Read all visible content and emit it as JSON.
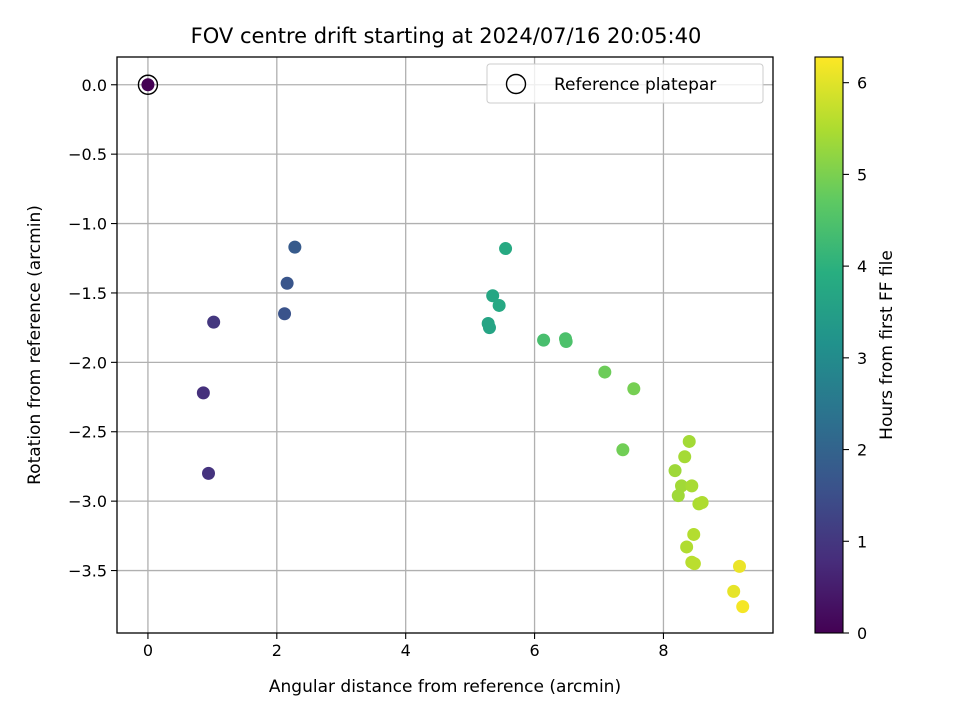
{
  "chart_data": {
    "type": "scatter",
    "title": "FOV centre drift starting at 2024/07/16 20:05:40",
    "xlabel": "Angular distance from reference (arcmin)",
    "ylabel": "Rotation from reference (arcmin)",
    "xlim": [
      -0.48,
      9.7
    ],
    "ylim": [
      -3.95,
      0.2
    ],
    "xticks": [
      0,
      2,
      4,
      6,
      8
    ],
    "xtick_labels": [
      "0",
      "2",
      "4",
      "6",
      "8"
    ],
    "yticks": [
      0.0,
      -0.5,
      -1.0,
      -1.5,
      -2.0,
      -2.5,
      -3.0,
      -3.5
    ],
    "ytick_labels": [
      "0.0",
      "−0.5",
      "−1.0",
      "−1.5",
      "−2.0",
      "−2.5",
      "−3.0",
      "−3.5"
    ],
    "grid": true,
    "colormap": "viridis",
    "colorbar": {
      "label": "Hours from first FF file",
      "range": [
        0,
        6.28
      ],
      "ticks": [
        0,
        1,
        2,
        3,
        4,
        5,
        6
      ],
      "tick_labels": [
        "0",
        "1",
        "2",
        "3",
        "4",
        "5",
        "6"
      ]
    },
    "legend": {
      "position": "top-right",
      "entries": [
        {
          "label": "Reference platepar",
          "marker": "open-circle"
        }
      ]
    },
    "reference_point": {
      "x": 0,
      "y": 0
    },
    "points": [
      {
        "x": 0.0,
        "y": 0.0,
        "hours": 0.0
      },
      {
        "x": 1.02,
        "y": -1.71,
        "hours": 1.0
      },
      {
        "x": 0.86,
        "y": -2.22,
        "hours": 0.85
      },
      {
        "x": 0.94,
        "y": -2.8,
        "hours": 0.92
      },
      {
        "x": 2.28,
        "y": -1.17,
        "hours": 1.8
      },
      {
        "x": 2.16,
        "y": -1.43,
        "hours": 1.65
      },
      {
        "x": 2.12,
        "y": -1.65,
        "hours": 1.6
      },
      {
        "x": 5.55,
        "y": -1.18,
        "hours": 3.8
      },
      {
        "x": 5.35,
        "y": -1.52,
        "hours": 3.7
      },
      {
        "x": 5.45,
        "y": -1.59,
        "hours": 3.75
      },
      {
        "x": 5.28,
        "y": -1.72,
        "hours": 3.65
      },
      {
        "x": 5.3,
        "y": -1.75,
        "hours": 3.66
      },
      {
        "x": 6.14,
        "y": -1.84,
        "hours": 4.4
      },
      {
        "x": 6.48,
        "y": -1.83,
        "hours": 4.45
      },
      {
        "x": 6.49,
        "y": -1.85,
        "hours": 4.47
      },
      {
        "x": 7.09,
        "y": -2.07,
        "hours": 4.85
      },
      {
        "x": 7.54,
        "y": -2.19,
        "hours": 4.95
      },
      {
        "x": 7.37,
        "y": -2.63,
        "hours": 4.9
      },
      {
        "x": 8.4,
        "y": -2.57,
        "hours": 5.4
      },
      {
        "x": 8.33,
        "y": -2.68,
        "hours": 5.42
      },
      {
        "x": 8.18,
        "y": -2.78,
        "hours": 5.35
      },
      {
        "x": 8.28,
        "y": -2.89,
        "hours": 5.38
      },
      {
        "x": 8.44,
        "y": -2.89,
        "hours": 5.45
      },
      {
        "x": 8.23,
        "y": -2.96,
        "hours": 5.36
      },
      {
        "x": 8.55,
        "y": -3.02,
        "hours": 5.48
      },
      {
        "x": 8.6,
        "y": -3.01,
        "hours": 5.5
      },
      {
        "x": 8.47,
        "y": -3.24,
        "hours": 5.55
      },
      {
        "x": 8.36,
        "y": -3.33,
        "hours": 5.52
      },
      {
        "x": 8.44,
        "y": -3.44,
        "hours": 5.6
      },
      {
        "x": 8.48,
        "y": -3.45,
        "hours": 5.62
      },
      {
        "x": 9.18,
        "y": -3.47,
        "hours": 6.1
      },
      {
        "x": 9.09,
        "y": -3.65,
        "hours": 6.05
      },
      {
        "x": 9.23,
        "y": -3.76,
        "hours": 6.2
      }
    ]
  }
}
